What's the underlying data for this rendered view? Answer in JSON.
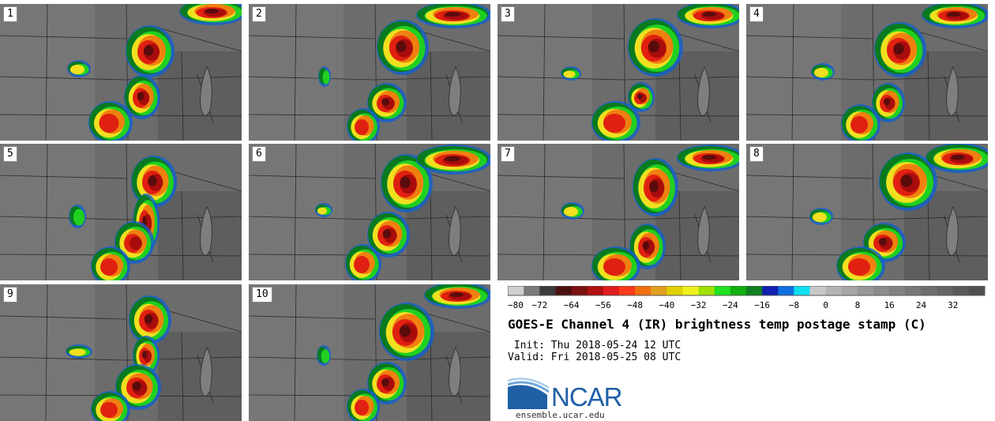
{
  "panels": [
    {
      "label": "1"
    },
    {
      "label": "2"
    },
    {
      "label": "3"
    },
    {
      "label": "4"
    },
    {
      "label": "5"
    },
    {
      "label": "6"
    },
    {
      "label": "7"
    },
    {
      "label": "8"
    },
    {
      "label": "9"
    },
    {
      "label": "10"
    }
  ],
  "colorbar": {
    "tick_labels": [
      "−80",
      "−72",
      "−64",
      "−56",
      "−48",
      "−40",
      "−32",
      "−24",
      "−16",
      "−8",
      "0",
      "8",
      "16",
      "24",
      "32"
    ],
    "colors": [
      "#d0d0d0",
      "#7a7a7a",
      "#3a3a3a",
      "#4a1010",
      "#7a1010",
      "#b01010",
      "#e01c1c",
      "#ff3a1a",
      "#f07010",
      "#e0a020",
      "#e0d000",
      "#f0f020",
      "#a0e000",
      "#20e020",
      "#10b010",
      "#108020",
      "#1020b0",
      "#1070e0",
      "#10e0f0",
      "#c8c8c8",
      "#b4b4b4",
      "#a6a6a6",
      "#989898",
      "#8c8c8c",
      "#828282",
      "#787878",
      "#6e6e6e",
      "#646464",
      "#5a5a5a",
      "#505050"
    ]
  },
  "title": "GOES-E Channel 4 (IR) brightness temp postage stamp (C)",
  "init_text": " Init: Thu 2018-05-24 12 UTC",
  "valid_text": "Valid: Fri 2018-05-25 08 UTC",
  "logo": {
    "text": "NCAR",
    "color": "#1f5fa6"
  },
  "site": "ensemble.ucar.edu"
}
